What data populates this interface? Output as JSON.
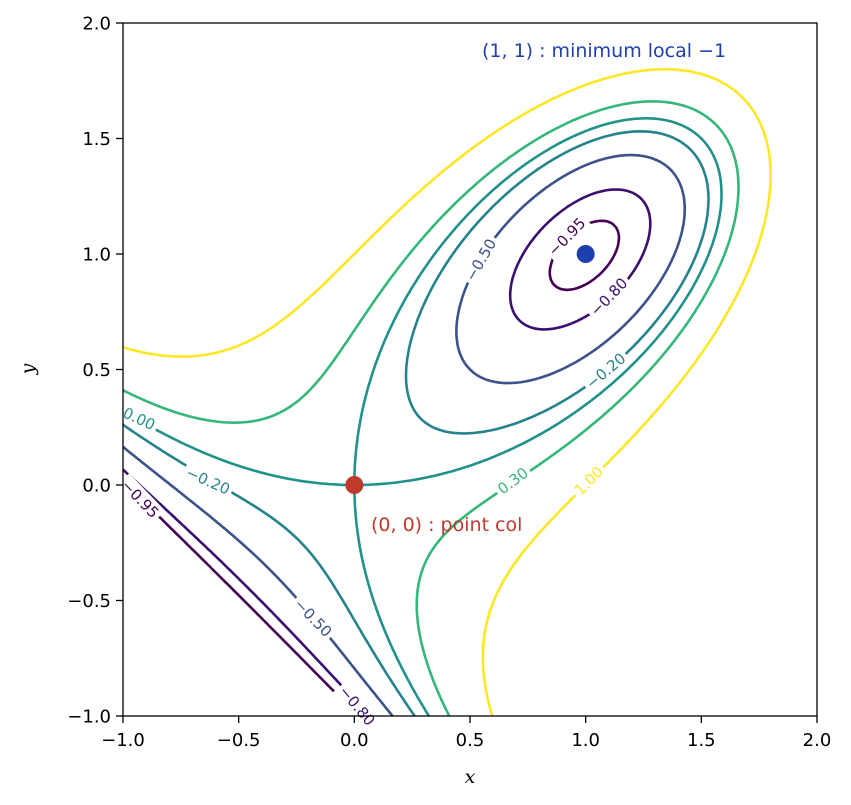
{
  "chart_data": {
    "type": "contour",
    "xlabel": "x",
    "ylabel": "y",
    "xlim": [
      -1.0,
      2.0
    ],
    "ylim": [
      -1.0,
      2.0
    ],
    "xticks": [
      "−1.0",
      "−0.5",
      "0.0",
      "0.5",
      "1.0",
      "1.5",
      "2.0"
    ],
    "yticks": [
      "−1.0",
      "−0.5",
      "0.0",
      "0.5",
      "1.0",
      "1.5",
      "2.0"
    ],
    "xtick_values": [
      -1.0,
      -0.5,
      0.0,
      0.5,
      1.0,
      1.5,
      2.0
    ],
    "ytick_values": [
      -1.0,
      -0.5,
      0.0,
      0.5,
      1.0,
      1.5,
      2.0
    ],
    "grid": false,
    "colormap": "viridis",
    "levels": [
      {
        "value": -0.95,
        "label": "−0.95",
        "color": "#440154"
      },
      {
        "value": -0.8,
        "label": "−0.80",
        "color": "#3b0f70"
      },
      {
        "value": -0.5,
        "label": "−0.50",
        "color": "#3b528b"
      },
      {
        "value": -0.2,
        "label": "−0.20",
        "color": "#26828e"
      },
      {
        "value": 0.0,
        "label": "0.00",
        "color": "#21918c"
      },
      {
        "value": 0.3,
        "label": "0.30",
        "color": "#35b779"
      },
      {
        "value": 1.0,
        "label": "1.00",
        "color": "#fde725"
      }
    ],
    "points": [
      {
        "x": 1.0,
        "y": 1.0,
        "color": "#1f3fae",
        "annotation": "(1, 1) : minimum local −1"
      },
      {
        "x": 0.0,
        "y": 0.0,
        "color": "#c0392b",
        "annotation": "(0, 0) : point col"
      }
    ]
  }
}
